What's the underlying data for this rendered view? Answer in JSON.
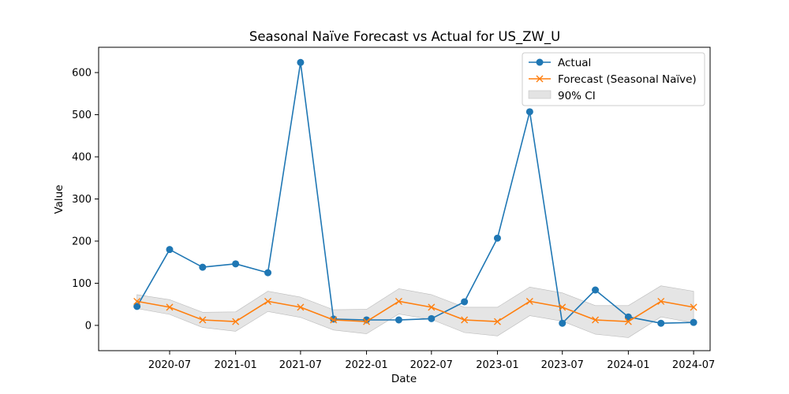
{
  "chart_data": {
    "type": "line",
    "title": "Seasonal Naïve Forecast vs Actual for US_ZW_U",
    "xlabel": "Date",
    "ylabel": "Value",
    "x_ticks": [
      "2020-07",
      "2021-01",
      "2021-07",
      "2022-01",
      "2022-07",
      "2023-01",
      "2023-07",
      "2024-01",
      "2024-07"
    ],
    "y_ticks": [
      0,
      100,
      200,
      300,
      400,
      500,
      600
    ],
    "ylim": [
      -60,
      660
    ],
    "xlim": [
      "2019-12-16",
      "2024-08-16"
    ],
    "x": [
      "2020-04-01",
      "2020-07-01",
      "2020-10-01",
      "2021-01-01",
      "2021-04-01",
      "2021-07-01",
      "2021-10-01",
      "2022-01-01",
      "2022-04-01",
      "2022-07-01",
      "2022-10-01",
      "2023-01-01",
      "2023-04-01",
      "2023-07-01",
      "2023-10-01",
      "2024-01-01",
      "2024-04-01",
      "2024-07-01"
    ],
    "series": [
      {
        "name": "Actual",
        "color": "#1f77b4",
        "marker": "circle",
        "values": [
          45,
          180,
          138,
          146,
          125,
          624,
          15,
          13,
          13,
          16,
          56,
          207,
          507,
          5,
          84,
          20,
          5,
          7
        ]
      },
      {
        "name": "Forecast (Seasonal Naïve)",
        "color": "#ff7f0e",
        "marker": "x",
        "values": [
          57,
          43,
          13,
          9,
          57,
          43,
          13,
          9,
          57,
          43,
          13,
          9,
          57,
          43,
          13,
          9,
          57,
          43
        ]
      }
    ],
    "ci": {
      "name": "90% CI",
      "color": "#cccccc",
      "lower": [
        40,
        26,
        -5,
        -14,
        33,
        19,
        -11,
        -20,
        27,
        14,
        -17,
        -25,
        23,
        10,
        -21,
        -29,
        20,
        6
      ],
      "upper": [
        73,
        61,
        31,
        32,
        81,
        67,
        37,
        38,
        87,
        73,
        43,
        43,
        91,
        77,
        47,
        47,
        94,
        81
      ]
    },
    "legend_position": "top-right",
    "grid": false
  }
}
